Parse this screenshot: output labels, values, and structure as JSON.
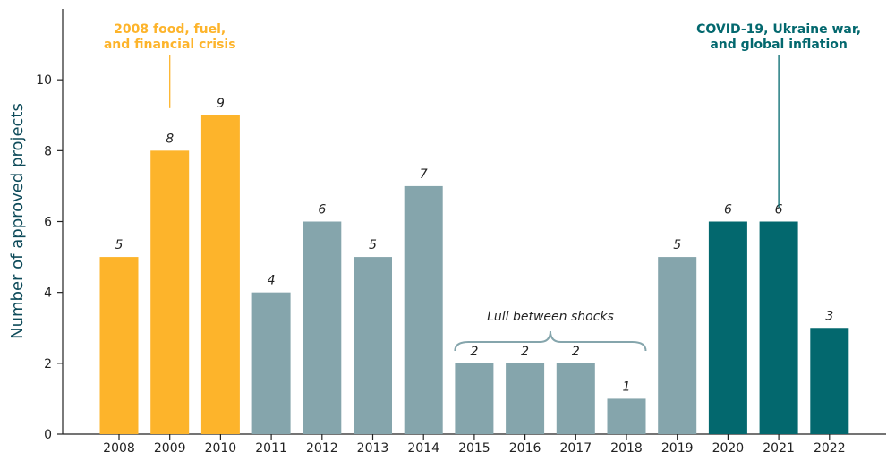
{
  "chart_data": {
    "type": "bar",
    "categories": [
      "2008",
      "2009",
      "2010",
      "2011",
      "2012",
      "2013",
      "2014",
      "2015",
      "2016",
      "2017",
      "2018",
      "2019",
      "2020",
      "2021",
      "2022"
    ],
    "values": [
      5,
      8,
      9,
      4,
      6,
      5,
      7,
      2,
      2,
      2,
      1,
      5,
      6,
      6,
      3
    ],
    "groups": [
      "crisis2008",
      "crisis2008",
      "crisis2008",
      "normal",
      "normal",
      "normal",
      "normal",
      "normal",
      "normal",
      "normal",
      "normal",
      "normal",
      "covid",
      "covid",
      "covid"
    ],
    "group_colors": {
      "crisis2008": "#FDB42B",
      "normal": "#85A5AC",
      "covid": "#03686E"
    },
    "ylabel": "Number of approved projects",
    "ylabel_color": "#0E4B5A",
    "yticks": [
      0,
      2,
      4,
      6,
      8,
      10
    ],
    "ylim": [
      0,
      12
    ],
    "grid": false,
    "annotations": {
      "crisis_2008": {
        "lines": [
          "2008 food, fuel,",
          "and financial crisis"
        ],
        "color": "#FDB42B",
        "anchor_category": "2009"
      },
      "covid": {
        "lines": [
          "COVID-19, Ukraine war,",
          "and global inflation"
        ],
        "color": "#03686E",
        "anchor_category": "2021"
      },
      "lull": {
        "text": "Lull between shocks",
        "from_category": "2015",
        "to_category": "2018",
        "brace_color": "#85A5AC"
      }
    }
  }
}
